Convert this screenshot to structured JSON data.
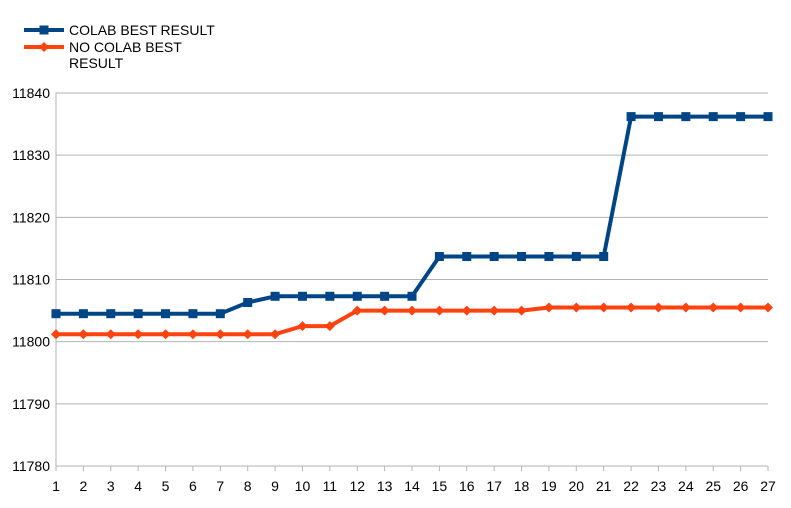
{
  "chart_data": {
    "type": "line",
    "title": "",
    "xlabel": "",
    "ylabel": "",
    "ylim": [
      11780,
      11840
    ],
    "yticks": [
      11780,
      11790,
      11800,
      11810,
      11820,
      11830,
      11840
    ],
    "grid": true,
    "legend_position": "top-left",
    "categories": [
      "1",
      "2",
      "3",
      "4",
      "5",
      "6",
      "7",
      "8",
      "9",
      "10",
      "11",
      "12",
      "13",
      "14",
      "15",
      "16",
      "17",
      "18",
      "19",
      "20",
      "21",
      "22",
      "23",
      "24",
      "25",
      "26",
      "27"
    ],
    "series": [
      {
        "name": "COLAB BEST RESULT",
        "legend_lines": [
          "COLAB BEST RESULT"
        ],
        "color": "#004586",
        "marker": "square",
        "values": [
          11804.5,
          11804.5,
          11804.5,
          11804.5,
          11804.5,
          11804.5,
          11804.5,
          11806.3,
          11807.3,
          11807.3,
          11807.3,
          11807.3,
          11807.3,
          11807.3,
          11813.7,
          11813.7,
          11813.7,
          11813.7,
          11813.7,
          11813.7,
          11813.7,
          11836.2,
          11836.2,
          11836.2,
          11836.2,
          11836.2,
          11836.2
        ]
      },
      {
        "name": "NO COLAB BEST RESULT",
        "legend_lines": [
          "NO COLAB BEST",
          "RESULT"
        ],
        "color": "#ff420e",
        "marker": "diamond",
        "values": [
          11801.2,
          11801.2,
          11801.2,
          11801.2,
          11801.2,
          11801.2,
          11801.2,
          11801.2,
          11801.2,
          11802.5,
          11802.5,
          11805.0,
          11805.0,
          11805.0,
          11805.0,
          11805.0,
          11805.0,
          11805.0,
          11805.5,
          11805.5,
          11805.5,
          11805.5,
          11805.5,
          11805.5,
          11805.5,
          11805.5,
          11805.5
        ]
      }
    ]
  }
}
